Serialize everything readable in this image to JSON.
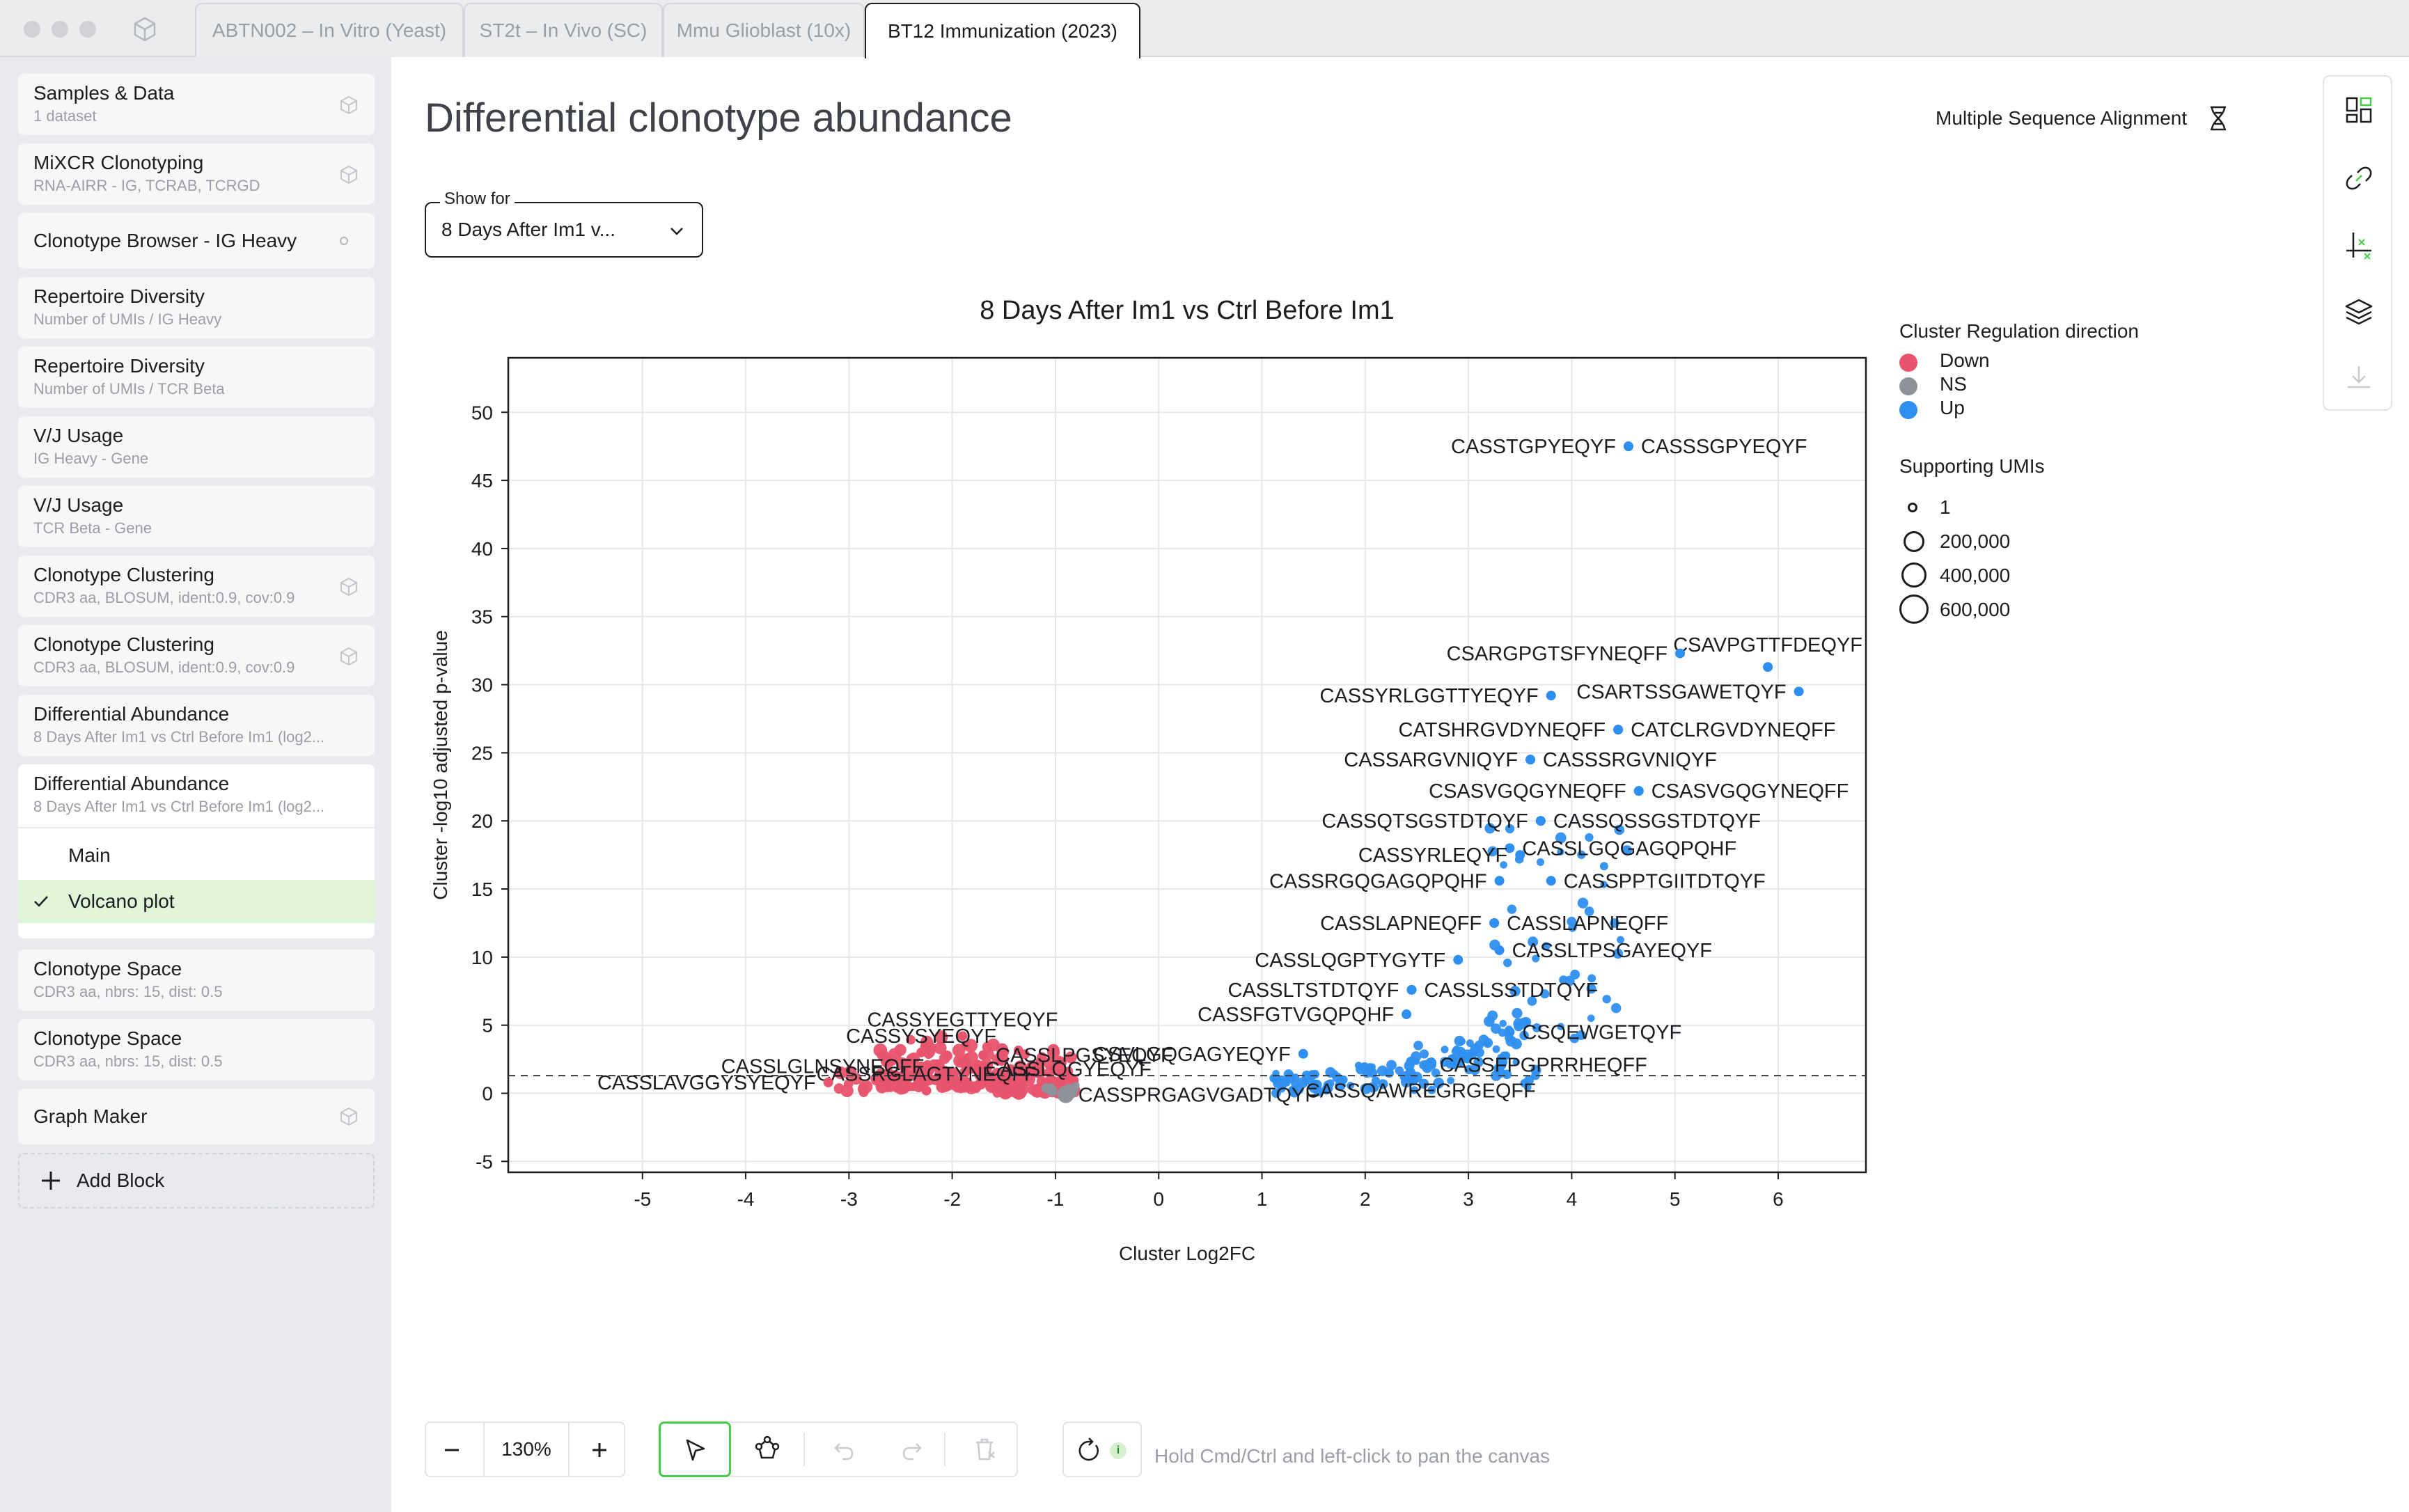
{
  "tabs": [
    {
      "label": "ABTN002 – In Vitro (Yeast)",
      "active": false
    },
    {
      "label": "ST2t – In Vivo (SC)",
      "active": false
    },
    {
      "label": "Mmu Glioblast (10x)",
      "active": false
    },
    {
      "label": "BT12 Immunization (2023)",
      "active": true
    }
  ],
  "sidebar": {
    "blocks": [
      {
        "title": "Samples & Data",
        "subtitle": "1 dataset",
        "icon": "cube-icon"
      },
      {
        "title": "MiXCR Clonotyping",
        "subtitle": "RNA-AIRR - IG, TCRAB, TCRGD",
        "icon": "cube-icon"
      },
      {
        "title": "Clonotype Browser - IG Heavy",
        "subtitle": "",
        "icon": "status-dot-icon"
      },
      {
        "title": "Repertoire Diversity",
        "subtitle": "Number of UMIs / IG Heavy",
        "icon": ""
      },
      {
        "title": "Repertoire Diversity",
        "subtitle": "Number of UMIs / TCR Beta",
        "icon": ""
      },
      {
        "title": "V/J Usage",
        "subtitle": "IG Heavy - Gene",
        "icon": ""
      },
      {
        "title": "V/J Usage",
        "subtitle": "TCR Beta - Gene",
        "icon": ""
      },
      {
        "title": "Clonotype Clustering",
        "subtitle": "CDR3 aa, BLOSUM, ident:0.9, cov:0.9",
        "icon": "cube-icon"
      },
      {
        "title": "Clonotype Clustering",
        "subtitle": "CDR3 aa, BLOSUM, ident:0.9, cov:0.9",
        "icon": "cube-icon"
      },
      {
        "title": "Differential Abundance",
        "subtitle": "8 Days After Im1 vs Ctrl Before Im1 (log2...",
        "icon": ""
      }
    ],
    "expanded": {
      "title": "Differential Abundance",
      "subtitle": "8 Days After Im1 vs Ctrl Before Im1 (log2...",
      "sections": [
        {
          "label": "Main",
          "selected": false
        },
        {
          "label": "Volcano plot",
          "selected": true
        }
      ]
    },
    "blocks_after": [
      {
        "title": "Clonotype Space",
        "subtitle": "CDR3 aa, nbrs: 15, dist: 0.5",
        "icon": ""
      },
      {
        "title": "Clonotype Space",
        "subtitle": "CDR3 aa, nbrs: 15, dist: 0.5",
        "icon": ""
      },
      {
        "title": "Graph Maker",
        "subtitle": "",
        "icon": "cube-icon"
      }
    ],
    "add_block_label": "Add Block"
  },
  "header": {
    "title": "Differential clonotype abundance",
    "msa_label": "Multiple Sequence Alignment"
  },
  "show_for": {
    "label": "Show for",
    "value": "8 Days After Im1 v..."
  },
  "legend": {
    "direction_title": "Cluster Regulation direction",
    "direction_items": [
      {
        "label": "Down",
        "color": "#e8546d"
      },
      {
        "label": "NS",
        "color": "#8f9299"
      },
      {
        "label": "Up",
        "color": "#2f8ff0"
      }
    ],
    "size_title": "Supporting UMIs",
    "size_items": [
      "1",
      "200,000",
      "400,000",
      "600,000"
    ]
  },
  "chart_data": {
    "type": "scatter",
    "title": "8 Days After Im1 vs Ctrl Before Im1",
    "xlabel": "Cluster Log2FC",
    "ylabel": "Cluster -log10 adjusted p-value",
    "xlim": [
      -6.3,
      6.85
    ],
    "ylim": [
      -5.8,
      54
    ],
    "xticks": [
      -5,
      -4,
      -3,
      -2,
      -1,
      0,
      1,
      2,
      3,
      4,
      5,
      6
    ],
    "yticks": [
      -5,
      0,
      5,
      10,
      15,
      20,
      25,
      30,
      35,
      40,
      45,
      50
    ],
    "threshold_y": 1.3,
    "colors": {
      "Down": "#e8546d",
      "NS": "#8f9299",
      "Up": "#2f8ff0"
    },
    "labeled_points": [
      {
        "label": "CASSTGPYEQYF",
        "x": 4.55,
        "y": 47.5,
        "dir": "Up",
        "side": "left"
      },
      {
        "label": "CASSSGPYEQYF",
        "x": 4.55,
        "y": 47.5,
        "dir": "Up",
        "side": "right"
      },
      {
        "label": "CSAVPGTTFDEQYF",
        "x": 5.9,
        "y": 31.3,
        "dir": "Up",
        "side": "rightup"
      },
      {
        "label": "CSARGPGTSFYNEQFF",
        "x": 5.05,
        "y": 32.3,
        "dir": "Up",
        "side": "left"
      },
      {
        "label": "CASSYRLGGTTYEQYF",
        "x": 3.8,
        "y": 29.2,
        "dir": "Up",
        "side": "left"
      },
      {
        "label": "CSARTSSGAWETQYF",
        "x": 6.2,
        "y": 29.5,
        "dir": "Up",
        "side": "left"
      },
      {
        "label": "CATSHRGVDYNEQFF",
        "x": 4.45,
        "y": 26.7,
        "dir": "Up",
        "side": "left"
      },
      {
        "label": "CATCLRGVDYNEQFF",
        "x": 4.45,
        "y": 26.7,
        "dir": "Up",
        "side": "right"
      },
      {
        "label": "CASSARGVNIQYF",
        "x": 3.6,
        "y": 24.5,
        "dir": "Up",
        "side": "left"
      },
      {
        "label": "CASSSRGVNIQYF",
        "x": 3.6,
        "y": 24.5,
        "dir": "Up",
        "side": "right"
      },
      {
        "label": "CSASVGQGYNEQFF",
        "x": 4.65,
        "y": 22.2,
        "dir": "Up",
        "side": "left"
      },
      {
        "label": "CSASVGQGYNEQFF",
        "x": 4.65,
        "y": 22.2,
        "dir": "Up",
        "side": "right"
      },
      {
        "label": "CASSQTSGSTDTQYF",
        "x": 3.7,
        "y": 20.0,
        "dir": "Up",
        "side": "left"
      },
      {
        "label": "CASSQSSGSTDTQYF",
        "x": 3.7,
        "y": 20.0,
        "dir": "Up",
        "side": "right"
      },
      {
        "label": "CASSLGQGAGQPQHF",
        "x": 3.4,
        "y": 18.0,
        "dir": "Up",
        "side": "right"
      },
      {
        "label": "CASSYRLEQYF",
        "x": 3.5,
        "y": 17.5,
        "dir": "Up",
        "side": "left"
      },
      {
        "label": "CASSRGQGAGQPQHF",
        "x": 3.3,
        "y": 15.6,
        "dir": "Up",
        "side": "left"
      },
      {
        "label": "CASSPPTGIITDTQYF",
        "x": 3.8,
        "y": 15.6,
        "dir": "Up",
        "side": "right"
      },
      {
        "label": "CASSLAPNEQFF",
        "x": 3.25,
        "y": 12.5,
        "dir": "Up",
        "side": "left"
      },
      {
        "label": "CASSLAPNEQFF",
        "x": 3.25,
        "y": 12.5,
        "dir": "Up",
        "side": "right"
      },
      {
        "label": "CASSLTPSGAYEQYF",
        "x": 3.3,
        "y": 10.5,
        "dir": "Up",
        "side": "right"
      },
      {
        "label": "CASSLQGPTYGYTF",
        "x": 2.9,
        "y": 9.8,
        "dir": "Up",
        "side": "left"
      },
      {
        "label": "CASSLTSTDTQYF",
        "x": 2.45,
        "y": 7.6,
        "dir": "Up",
        "side": "left"
      },
      {
        "label": "CASSLSSTDTQYF",
        "x": 2.45,
        "y": 7.6,
        "dir": "Up",
        "side": "right"
      },
      {
        "label": "CASSFGTVGQPQHF",
        "x": 2.4,
        "y": 5.8,
        "dir": "Up",
        "side": "left"
      },
      {
        "label": "CSQEWGETQYF",
        "x": 3.4,
        "y": 4.5,
        "dir": "Up",
        "side": "right"
      },
      {
        "label": "CSVLGQGAGYEQYF",
        "x": 1.4,
        "y": 2.9,
        "dir": "Up",
        "side": "left"
      },
      {
        "label": "CASSFPGPRRHEQFF",
        "x": 2.6,
        "y": 2.1,
        "dir": "Up",
        "side": "right"
      },
      {
        "label": "CASSQAWREGRGEQFF",
        "x": 1.3,
        "y": 0.2,
        "dir": "Up",
        "side": "right"
      },
      {
        "label": "CASSPRGAGVGADTQYF",
        "x": -0.9,
        "y": -0.1,
        "dir": "NS",
        "side": "right"
      },
      {
        "label": "CASSYEGTTYEQYF",
        "x": -1.9,
        "y": 4.2,
        "dir": "Down",
        "side": "center"
      },
      {
        "label": "CASSYSYEQYF",
        "x": -2.3,
        "y": 3.0,
        "dir": "Down",
        "side": "center"
      },
      {
        "label": "CASSLPGSYEQYF",
        "x": -1.7,
        "y": 2.8,
        "dir": "Down",
        "side": "right"
      },
      {
        "label": "CASSLGLNSYNEQFF",
        "x": -2.15,
        "y": 2.0,
        "dir": "Down",
        "side": "left"
      },
      {
        "label": "CASSLQGYEQYF",
        "x": -1.8,
        "y": 1.8,
        "dir": "Down",
        "side": "right"
      },
      {
        "label": "CASSRGLAGTYNEQFF",
        "x": -2.25,
        "y": 0.2,
        "dir": "Down",
        "side": "center"
      },
      {
        "label": "CASSLAVGGYSYEQYF",
        "x": -3.2,
        "y": 0.8,
        "dir": "Down",
        "side": "left"
      }
    ]
  },
  "bottom_toolbar": {
    "zoom": "130%",
    "hint": "Hold Cmd/Ctrl and left-click to pan the canvas"
  }
}
